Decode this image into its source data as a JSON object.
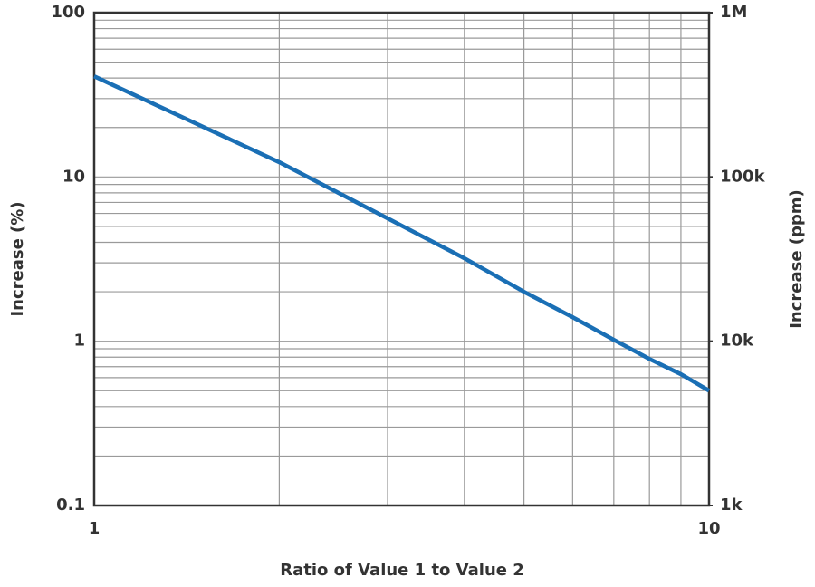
{
  "chart_data": {
    "type": "line",
    "x_label": "Ratio of Value 1 to Value 2",
    "y_label": "Increase (%)",
    "y2_label": "Increase (ppm)",
    "x": [
      1,
      2,
      3,
      4,
      5,
      6,
      7,
      8,
      9,
      10
    ],
    "series": [
      {
        "name": "Increase",
        "color": "#1a6fb5",
        "values": [
          41,
          12.3,
          5.6,
          3.2,
          2.0,
          1.4,
          1.02,
          0.78,
          0.63,
          0.5
        ]
      }
    ],
    "xlim": [
      1,
      10
    ],
    "xticks": [
      1,
      10
    ],
    "xscale": "log",
    "ylim": [
      0.1,
      100
    ],
    "yticks": [
      0.1,
      1,
      10,
      100
    ],
    "yscale": "log",
    "y2lim": [
      1000,
      1000000
    ],
    "y2ticks": [
      {
        "value": 1000,
        "label": "1k"
      },
      {
        "value": 10000,
        "label": "10k"
      },
      {
        "value": 100000,
        "label": "100k"
      },
      {
        "value": 1000000,
        "label": "1M"
      }
    ],
    "grid": true,
    "minor_grid": true
  }
}
